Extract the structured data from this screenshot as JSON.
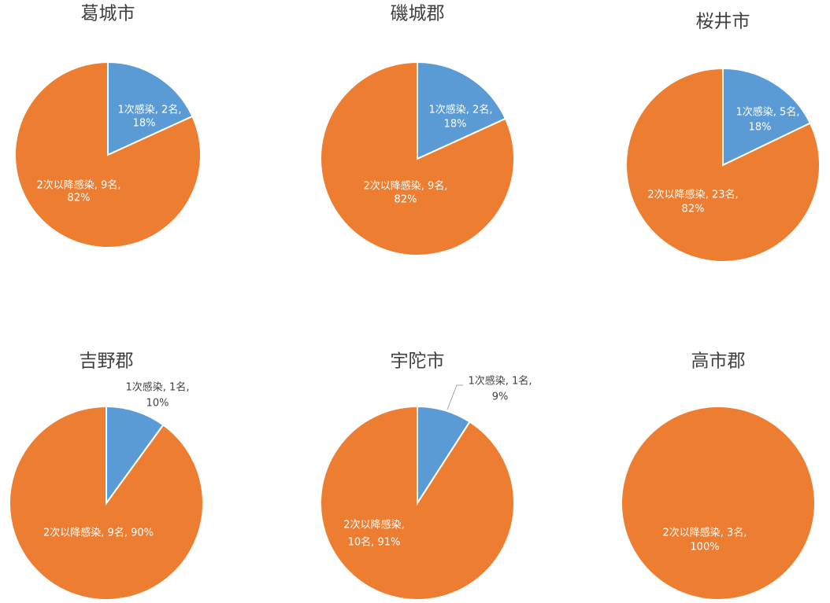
{
  "chart_data": [
    {
      "type": "pie",
      "title": "葛城市",
      "values": [
        2,
        9
      ],
      "colors": [
        "#5b9bd5",
        "#ed7d31"
      ],
      "value_labels": [
        [
          "1次感染, 2名,",
          "18%"
        ],
        [
          "2次以降感染, 9名,",
          "82%"
        ]
      ]
    },
    {
      "type": "pie",
      "title": "磯城郡",
      "values": [
        2,
        9
      ],
      "colors": [
        "#5b9bd5",
        "#ed7d31"
      ],
      "value_labels": [
        [
          "1次感染, 2名,",
          "18%"
        ],
        [
          "2次以降感染, 9名,",
          "82%"
        ]
      ]
    },
    {
      "type": "pie",
      "title": "桜井市",
      "values": [
        5,
        23
      ],
      "colors": [
        "#5b9bd5",
        "#ed7d31"
      ],
      "value_labels": [
        [
          "1次感染, 5名,",
          "18%"
        ],
        [
          "2次以降感染, 23名,",
          "82%"
        ]
      ]
    },
    {
      "type": "pie",
      "title": "吉野郡",
      "values": [
        1,
        9
      ],
      "colors": [
        "#5b9bd5",
        "#ed7d31"
      ],
      "value_labels": [
        [
          "1次感染, 1名,",
          "10%"
        ],
        [
          "2次以降感染, 9名, 90%"
        ]
      ]
    },
    {
      "type": "pie",
      "title": "宇陀市",
      "values": [
        1,
        10
      ],
      "colors": [
        "#5b9bd5",
        "#ed7d31"
      ],
      "value_labels": [
        [
          "1次感染, 1名,",
          "9%"
        ],
        [
          "2次以降感染,",
          "10名, 91%"
        ]
      ]
    },
    {
      "type": "pie",
      "title": "高市郡",
      "values": [
        0,
        3
      ],
      "colors": [
        "#5b9bd5",
        "#ed7d31"
      ],
      "value_labels": [
        null,
        [
          "2次以降感染, 3名,",
          "100%"
        ]
      ]
    }
  ]
}
